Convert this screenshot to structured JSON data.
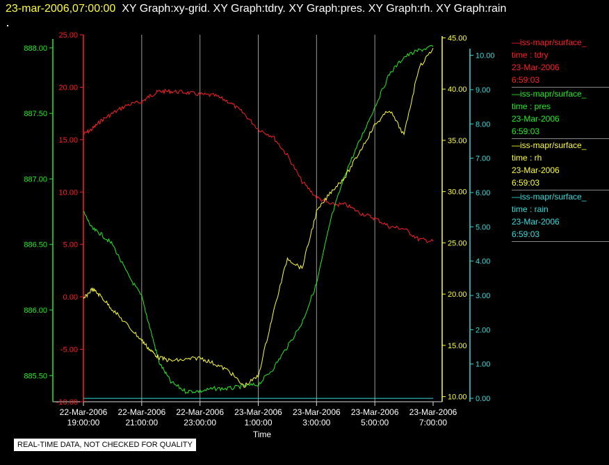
{
  "header": {
    "time_stamp": "23-mar-2006,07:00:00",
    "graph_titles": "XY Graph:xy-grid.  XY Graph:tdry.  XY Graph:pres.  XY Graph:rh.  XY Graph:rain"
  },
  "notice": "REAL-TIME DATA, NOT CHECKED FOR QUALITY",
  "legend": [
    {
      "line1": "—iss-mapr/surface_",
      "line2": "time : tdry",
      "line3": "23-Mar-2006",
      "line4": "6:59:03",
      "color": "#ff2020"
    },
    {
      "line1": "—iss-mapr/surface_",
      "line2": "time : pres",
      "line3": "23-Mar-2006",
      "line4": "6:59:03",
      "color": "#22ee22"
    },
    {
      "line1": "—iss-mapr/surface_",
      "line2": "time : rh",
      "line3": "23-Mar-2006",
      "line4": "6:59:03",
      "color": "#ffff33"
    },
    {
      "line1": "—iss-mapr/surface_",
      "line2": "time : rain",
      "line3": "23-Mar-2006",
      "line4": "6:59:03",
      "color": "#33dddd"
    }
  ],
  "chart_data": {
    "type": "line",
    "xlabel": "Time",
    "x_tick_labels": [
      {
        "date": "22-Mar-2006",
        "time": "19:00:00"
      },
      {
        "date": "22-Mar-2006",
        "time": "21:00:00"
      },
      {
        "date": "22-Mar-2006",
        "time": "23:00:00"
      },
      {
        "date": "23-Mar-2006",
        "time": "1:00:00"
      },
      {
        "date": "23-Mar-2006",
        "time": "3:00:00"
      },
      {
        "date": "23-Mar-2006",
        "time": "5:00:00"
      },
      {
        "date": "23-Mar-2006",
        "time": "7:00:00"
      }
    ],
    "x_range_hours": [
      0,
      12
    ],
    "grid": "vertical",
    "axes": [
      {
        "id": "pres",
        "color": "#22ee22",
        "side": "left-outer",
        "range": [
          885.3,
          888.1
        ],
        "ticks": [
          "885.50",
          "886.00",
          "886.50",
          "887.00",
          "887.50",
          "888.00"
        ]
      },
      {
        "id": "tdry",
        "color": "#ff2020",
        "side": "left-inner",
        "range": [
          -10,
          25
        ],
        "ticks": [
          "-10.00",
          "-5.00",
          "0.00",
          "5.00",
          "10.00",
          "15.00",
          "20.00",
          "25.00"
        ]
      },
      {
        "id": "rh",
        "color": "#ffff33",
        "side": "right-inner",
        "range": [
          9.5,
          45.3
        ],
        "ticks": [
          "10.00",
          "15.00",
          "20.00",
          "25.00",
          "30.00",
          "35.00",
          "40.00",
          "45.00"
        ]
      },
      {
        "id": "rain",
        "color": "#33dddd",
        "side": "right-outer",
        "range": [
          -0.1,
          10.6
        ],
        "ticks": [
          "0.00",
          "1.00",
          "2.00",
          "3.00",
          "4.00",
          "5.00",
          "6.00",
          "7.00",
          "8.00",
          "9.00",
          "10.00"
        ]
      }
    ],
    "series": [
      {
        "axis": "tdry",
        "color": "#ff2020",
        "x": [
          0,
          0.3,
          0.6,
          1.0,
          1.5,
          2.0,
          2.3,
          2.6,
          3.0,
          3.5,
          4.0,
          4.5,
          5.0,
          5.5,
          6.0,
          6.5,
          7.0,
          7.5,
          8.0,
          8.5,
          9.0,
          9.5,
          10.0,
          10.5,
          11.0,
          11.5,
          12.0
        ],
        "y": [
          15.5,
          16.0,
          16.8,
          17.5,
          18.3,
          18.6,
          19.2,
          19.6,
          19.6,
          19.5,
          19.3,
          19.2,
          18.6,
          17.5,
          16.0,
          15.3,
          13.5,
          11.0,
          9.5,
          8.8,
          8.8,
          8.0,
          7.5,
          6.7,
          6.5,
          5.5,
          5.3
        ]
      },
      {
        "axis": "pres",
        "color": "#22ee22",
        "x": [
          0,
          0.3,
          0.6,
          1.0,
          1.5,
          2.0,
          2.3,
          2.6,
          3.0,
          3.5,
          4.0,
          4.5,
          5.0,
          5.5,
          6.0,
          6.5,
          7.0,
          7.5,
          8.0,
          8.5,
          9.0,
          9.5,
          10.0,
          10.5,
          11.0,
          11.5,
          12.0
        ],
        "y": [
          886.75,
          886.62,
          886.58,
          886.5,
          886.28,
          886.1,
          885.85,
          885.6,
          885.45,
          885.38,
          885.38,
          885.4,
          885.4,
          885.42,
          885.43,
          885.55,
          885.72,
          885.9,
          886.2,
          886.7,
          887.05,
          887.3,
          887.55,
          887.8,
          887.93,
          887.98,
          888.01
        ]
      },
      {
        "axis": "rh",
        "color": "#ffff33",
        "x": [
          0,
          0.3,
          0.6,
          1.0,
          1.5,
          2.0,
          2.3,
          2.6,
          3.0,
          3.5,
          4.0,
          4.5,
          5.0,
          5.5,
          6.0,
          6.5,
          7.0,
          7.5,
          8.0,
          8.5,
          9.0,
          9.5,
          10.0,
          10.5,
          11.0,
          11.5,
          12.0
        ],
        "y": [
          19.5,
          20.5,
          19.8,
          18.5,
          17.0,
          15.5,
          14.5,
          13.8,
          13.5,
          13.6,
          13.8,
          13.2,
          12.5,
          11.0,
          12.0,
          18.0,
          23.5,
          22.5,
          28.0,
          30.0,
          31.5,
          34.0,
          36.5,
          38.0,
          35.5,
          42.0,
          44.0
        ]
      },
      {
        "axis": "rain",
        "color": "#33dddd",
        "x": [
          0,
          12
        ],
        "y": [
          0,
          0
        ]
      }
    ]
  }
}
